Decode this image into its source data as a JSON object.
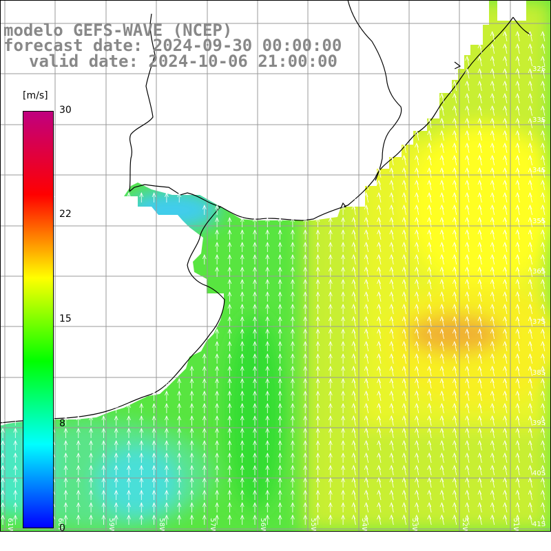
{
  "title": {
    "line1": "modelo GEFS-WAVE (NCEP)",
    "line2": "forecast date: 2024-09-30 00:00:00",
    "line3": "valid date: 2024-10-06 21:00:00"
  },
  "colorbar": {
    "unit": "[m/s]",
    "min": 0,
    "max": 30,
    "ticks": [
      "30",
      "22",
      "15",
      "8",
      "0"
    ],
    "tick_values": [
      30,
      22,
      15,
      8,
      0
    ],
    "colors": [
      "#0000ff",
      "#00ffff",
      "#00ff00",
      "#ffff00",
      "#ff0000",
      "#c0007f"
    ]
  },
  "map": {
    "lon_labels": [
      "61W",
      "60W",
      "59W",
      "58W",
      "57W",
      "56W",
      "55W",
      "54W",
      "53W",
      "52W",
      "51W"
    ],
    "lat_labels": [
      "32S",
      "33S",
      "34S",
      "35S",
      "36S",
      "37S",
      "38S",
      "39S",
      "40S",
      "41S"
    ],
    "lon_range": [
      -61.4,
      -50.6
    ],
    "lat_range": [
      -41.2,
      -30.4
    ],
    "wind_direction": "from south (arrows pointing north)",
    "field_colors": {
      "low": "#40ddea",
      "mid": "#28e23c",
      "high": "#ffff20",
      "peak": "#f0a828",
      "land": "#ffffff",
      "grid": "#999999",
      "coast": "#000000"
    }
  }
}
